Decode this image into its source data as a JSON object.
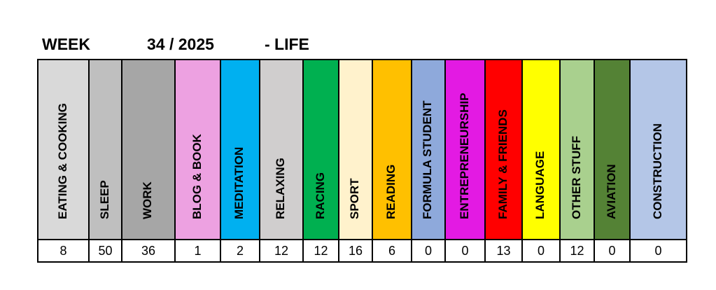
{
  "title": {
    "week_label": "WEEK",
    "week_number": "34 / 2025",
    "life_label": "- LIFE"
  },
  "categories": [
    {
      "label": "EATING & COOKING",
      "value": "8",
      "color": "#D9D9D9"
    },
    {
      "label": "SLEEP",
      "value": "50",
      "color": "#BFBFBF"
    },
    {
      "label": "WORK",
      "value": "36",
      "color": "#A6A6A6"
    },
    {
      "label": "BLOG & BOOK",
      "value": "1",
      "color": "#EDA1E1"
    },
    {
      "label": "MEDITATION",
      "value": "2",
      "color": "#00B0F0"
    },
    {
      "label": "RELAXING",
      "value": "12",
      "color": "#D0CECE"
    },
    {
      "label": "RACING",
      "value": "12",
      "color": "#00B050"
    },
    {
      "label": "SPORT",
      "value": "16",
      "color": "#FFF2CC"
    },
    {
      "label": "READING",
      "value": "6",
      "color": "#FFC000"
    },
    {
      "label": "FORMULA STUDENT",
      "value": "0",
      "color": "#8EA9DB"
    },
    {
      "label": "ENTREPRENEURSHIP",
      "value": "0",
      "color": "#E31AE3"
    },
    {
      "label": "FAMILY & FRIENDS",
      "value": "13",
      "color": "#FF0000"
    },
    {
      "label": "LANGUAGE",
      "value": "0",
      "color": "#FFFF00"
    },
    {
      "label": "OTHER STUFF",
      "value": "12",
      "color": "#A9D08E"
    },
    {
      "label": "AVIATION",
      "value": "0",
      "color": "#548235"
    },
    {
      "label": "CONSTRUCTION",
      "value": "0",
      "color": "#B4C6E7"
    }
  ]
}
